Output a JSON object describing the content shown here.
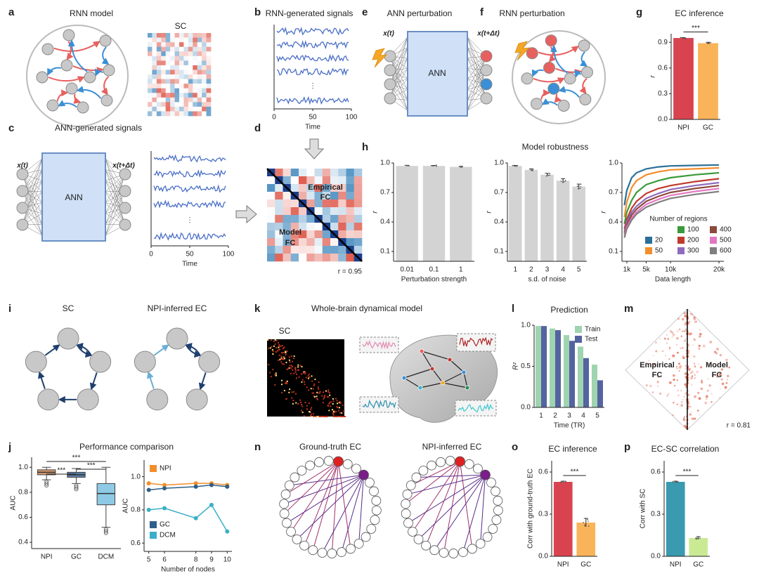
{
  "panel_letters": [
    "a",
    "b",
    "e",
    "f",
    "g",
    "c",
    "d",
    "h",
    "i",
    "k",
    "l",
    "m",
    "j",
    "n",
    "o",
    "p"
  ],
  "texts": {
    "rnn_model": "RNN model",
    "sc_a": "SC",
    "ann_perturbation": "ANN perturbation",
    "x_t": "x(t)",
    "x_t_dt": "x(t+Δt)",
    "ann": "ANN",
    "rnn_perturbation": "RNN perturbation",
    "ann_c": "ANN",
    "x_t_c": "x(t)",
    "x_t_dt_c": "x(t+Δt)",
    "ellipsis_b": "⋮",
    "ellipsis_c": "⋮",
    "empirical_fc": [
      "Empirical",
      "FC"
    ],
    "model_fc": [
      "Model",
      "FC"
    ],
    "r_d": "r = 0.95",
    "model_robustness": "Model robustness",
    "sc_i": "SC",
    "npi_ec_i": "NPI-inferred EC",
    "whole_brain": "Whole-brain dynamical model",
    "sc_k": "SC",
    "empirical_fc_m": [
      "Empirical",
      "FC"
    ],
    "model_fc_m": [
      "Model",
      "FC"
    ],
    "r_m": "r = 0.81",
    "performance": "Performance comparison",
    "ground_truth": "Ground-truth EC",
    "npi_ec_n": "NPI-inferred EC"
  },
  "chart_data": [
    {
      "type": "signals",
      "title": "RNN-generated signals",
      "xlim": [
        0,
        100
      ],
      "xticks": [
        0,
        50,
        100
      ],
      "xlabel": "Time"
    },
    {
      "type": "signals",
      "title": "ANN-generated signals",
      "xlim": [
        0,
        100
      ],
      "xticks": [
        0,
        50,
        100
      ],
      "xlabel": "Time"
    },
    {
      "type": "bar",
      "title": "EC inference",
      "categories": [
        "NPI",
        "GC"
      ],
      "values": [
        0.95,
        0.89
      ],
      "errors": [
        0.005,
        0.01
      ],
      "colors": [
        "#d9434f",
        "#f9b45a"
      ],
      "ylabel": "r",
      "ylim": [
        0,
        1.0
      ],
      "yticks": [
        {
          "value": 0,
          "label": "0.0"
        },
        0.3,
        0.6,
        0.9
      ],
      "annotation": "***"
    },
    {
      "type": "bar",
      "categories": [
        "0.01",
        "0.1",
        "1"
      ],
      "values": [
        0.97,
        0.97,
        0.96
      ],
      "errors": [
        0.005,
        0.005,
        0.006
      ],
      "color": "#d3d3d3",
      "xlabel": "Perturbation strength",
      "ylabel": "r",
      "ylim": [
        0,
        1.0
      ],
      "yticks": [
        0.1,
        0.4,
        0.7,
        {
          "value": 1,
          "label": "1.0"
        }
      ]
    },
    {
      "type": "bar",
      "categories": [
        "1",
        "2",
        "3",
        "4",
        "5"
      ],
      "values": [
        0.97,
        0.93,
        0.88,
        0.82,
        0.76
      ],
      "errors": [
        0.005,
        0.01,
        0.015,
        0.02,
        0.025
      ],
      "color": "#d3d3d3",
      "xlabel": "s.d. of noise",
      "ylabel": "r",
      "ylim": [
        0,
        1.0
      ],
      "yticks": [
        0.1,
        0.4,
        0.7,
        {
          "value": 1,
          "label": "1.0"
        }
      ]
    },
    {
      "type": "line",
      "x": [
        500,
        1000,
        2000,
        3000,
        5000,
        7500,
        10000,
        15000,
        20000
      ],
      "xlim": [
        0,
        21000
      ],
      "xticks": [
        {
          "value": 1000,
          "label": "1k"
        },
        {
          "value": 5000,
          "label": "5k"
        },
        {
          "value": 10000,
          "label": "10k"
        },
        {
          "value": 20000,
          "label": "20k"
        }
      ],
      "xlabel": "Data length",
      "ylabel": "r",
      "ylim": [
        0,
        1.0
      ],
      "yticks": [
        0.1,
        0.4,
        0.7,
        {
          "value": 1,
          "label": "1.0"
        }
      ],
      "legend_title": "Number of regions",
      "series": [
        {
          "name": "20",
          "color": "#2a6f97",
          "values": [
            0.57,
            0.72,
            0.85,
            0.9,
            0.94,
            0.96,
            0.97,
            0.975,
            0.98
          ]
        },
        {
          "name": "50",
          "color": "#f28e2b",
          "values": [
            0.45,
            0.6,
            0.75,
            0.82,
            0.88,
            0.91,
            0.93,
            0.94,
            0.95
          ]
        },
        {
          "name": "100",
          "color": "#3a9a3a",
          "values": [
            0.38,
            0.5,
            0.62,
            0.7,
            0.78,
            0.82,
            0.85,
            0.88,
            0.9
          ]
        },
        {
          "name": "200",
          "color": "#c0392b",
          "values": [
            0.33,
            0.43,
            0.54,
            0.61,
            0.69,
            0.74,
            0.77,
            0.81,
            0.84
          ]
        },
        {
          "name": "300",
          "color": "#8e6bbf",
          "values": [
            0.3,
            0.4,
            0.5,
            0.56,
            0.64,
            0.69,
            0.73,
            0.77,
            0.8
          ]
        },
        {
          "name": "400",
          "color": "#8c4a3c",
          "values": [
            0.28,
            0.37,
            0.47,
            0.53,
            0.61,
            0.66,
            0.7,
            0.74,
            0.77
          ]
        },
        {
          "name": "500",
          "color": "#e377c2",
          "values": [
            0.26,
            0.35,
            0.44,
            0.5,
            0.58,
            0.63,
            0.67,
            0.71,
            0.74
          ]
        },
        {
          "name": "600",
          "color": "#7f7f7f",
          "values": [
            0.24,
            0.33,
            0.42,
            0.48,
            0.55,
            0.6,
            0.64,
            0.68,
            0.71
          ]
        }
      ]
    },
    {
      "type": "bar",
      "title": "Prediction",
      "categories": [
        "1",
        "2",
        "3",
        "4",
        "5"
      ],
      "xlabel": "Time (TR)",
      "ylabel": "R²",
      "ylim": [
        0,
        1.0
      ],
      "yticks": [
        {
          "value": 0,
          "label": "0.0"
        },
        0.5,
        {
          "value": 1,
          "label": "1.0"
        }
      ],
      "series": [
        {
          "name": "Train",
          "color": "#9fd4b0",
          "values": [
            0.99,
            0.96,
            0.88,
            0.74,
            0.52
          ]
        },
        {
          "name": "Test",
          "color": "#5563a0",
          "values": [
            0.99,
            0.94,
            0.81,
            0.6,
            0.33
          ]
        }
      ]
    },
    {
      "type": "bar",
      "title": "EC inference",
      "categories": [
        "NPI",
        "GC"
      ],
      "values": [
        0.53,
        0.24
      ],
      "errors": [
        0.005,
        0.03
      ],
      "colors": [
        "#d9434f",
        "#f9b45a"
      ],
      "ylabel": "Corr with ground-truth EC",
      "ylim": [
        0,
        0.68
      ],
      "yticks": [
        {
          "value": 0,
          "label": "0.0"
        },
        0.3,
        0.6
      ],
      "annotation": "***"
    },
    {
      "type": "bar",
      "title": "EC-SC correlation",
      "categories": [
        "NPI",
        "GC"
      ],
      "values": [
        0.53,
        0.13
      ],
      "errors": [
        0.005,
        0.01
      ],
      "colors": [
        "#3a9ab0",
        "#c9ea93"
      ],
      "ylabel": "Corr with SC",
      "ylim": [
        0,
        0.68
      ],
      "yticks": [
        {
          "value": 0,
          "label": "0.0"
        },
        0.3,
        0.6
      ],
      "annotation": "***"
    },
    {
      "type": "box",
      "categories": [
        "NPI",
        "GC",
        "DCM"
      ],
      "stats": [
        [
          0.9,
          0.94,
          0.96,
          0.98,
          1.0
        ],
        [
          0.87,
          0.92,
          0.94,
          0.96,
          0.99
        ],
        [
          0.52,
          0.7,
          0.79,
          0.87,
          1.0
        ]
      ],
      "colors": [
        "#d99a6c",
        "#5a7fa8",
        "#8ecae6"
      ],
      "ylabel": "AUC",
      "ylim": [
        0.35,
        1.08
      ],
      "yticks": [
        0.4,
        0.6,
        0.8,
        {
          "value": 1,
          "label": "1.0"
        }
      ],
      "annotations": [
        "***",
        "***",
        "***"
      ]
    },
    {
      "type": "line",
      "markers": true,
      "x": [
        5,
        6,
        8,
        9,
        10
      ],
      "xlim": [
        4.7,
        10.3
      ],
      "xticks": [
        5,
        6,
        8,
        9,
        10
      ],
      "xlabel": "Number of nodes",
      "ylabel": "AUC",
      "ylim": [
        0.55,
        1.1
      ],
      "yticks": [
        0.6,
        0.8,
        {
          "value": 1,
          "label": "1.0"
        }
      ],
      "series": [
        {
          "name": "NPI",
          "color": "#f28e2b",
          "values": [
            0.96,
            0.95,
            0.96,
            0.96,
            0.95
          ]
        },
        {
          "name": "GC",
          "color": "#2e5f8a",
          "values": [
            0.92,
            0.93,
            0.94,
            0.95,
            0.94
          ]
        },
        {
          "name": "DCM",
          "color": "#3ab0c8",
          "values": [
            0.8,
            0.81,
            0.75,
            0.83,
            0.67
          ]
        }
      ]
    }
  ]
}
